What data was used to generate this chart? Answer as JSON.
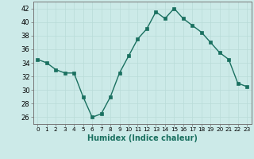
{
  "x": [
    0,
    1,
    2,
    3,
    4,
    5,
    6,
    7,
    8,
    9,
    10,
    11,
    12,
    13,
    14,
    15,
    16,
    17,
    18,
    19,
    20,
    21,
    22,
    23
  ],
  "y": [
    34.5,
    34.0,
    33.0,
    32.5,
    32.5,
    29.0,
    26.0,
    26.5,
    29.0,
    32.5,
    35.0,
    37.5,
    39.0,
    41.5,
    40.5,
    42.0,
    40.5,
    39.5,
    38.5,
    37.0,
    35.5,
    34.5,
    31.0,
    30.5
  ],
  "xlabel": "Humidex (Indice chaleur)",
  "ylim": [
    25,
    43
  ],
  "xlim": [
    -0.5,
    23.5
  ],
  "yticks": [
    26,
    28,
    30,
    32,
    34,
    36,
    38,
    40,
    42
  ],
  "xticks": [
    0,
    1,
    2,
    3,
    4,
    5,
    6,
    7,
    8,
    9,
    10,
    11,
    12,
    13,
    14,
    15,
    16,
    17,
    18,
    19,
    20,
    21,
    22,
    23
  ],
  "line_color": "#1a7060",
  "marker_color": "#1a7060",
  "bg_color": "#cceae8",
  "grid_color": "#b8dbd8",
  "axis_color": "#777777",
  "xlabel_color": "#1a7060"
}
